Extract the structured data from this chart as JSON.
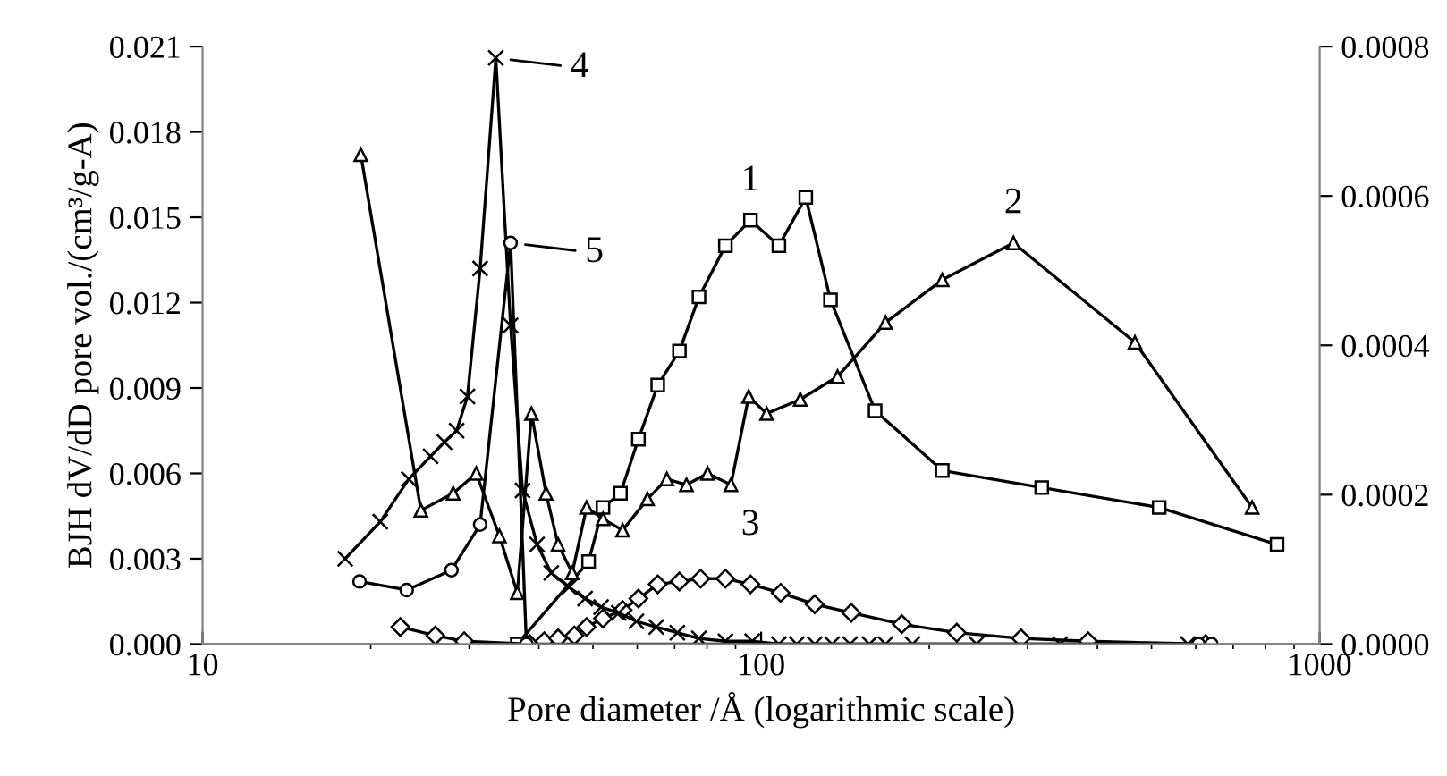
{
  "chart_data": {
    "type": "line",
    "xlabel": "Pore diameter /Å (logarithmic scale)",
    "ylabel": "BJH dV/dD pore vol./(cm³/g-A)",
    "log": "x",
    "xlim": [
      10,
      1000
    ],
    "xticks": [
      10,
      100,
      1000
    ],
    "ylim": [
      0,
      0.021
    ],
    "yticks": [
      {
        "value": 0,
        "label": "0.000"
      },
      {
        "value": 0.003,
        "label": "0.003"
      },
      {
        "value": 0.006,
        "label": "0.006"
      },
      {
        "value": 0.009,
        "label": "0.009"
      },
      {
        "value": 0.012,
        "label": "0.012"
      },
      {
        "value": 0.015,
        "label": "0.015"
      },
      {
        "value": 0.018,
        "label": "0.018"
      },
      {
        "value": 0.021,
        "label": "0.021"
      }
    ],
    "y2lim": [
      0,
      0.0008
    ],
    "y2ticks": [
      {
        "value": 0,
        "label": "0.0000"
      },
      {
        "value": 0.0002,
        "label": "0.0002"
      },
      {
        "value": 0.0004,
        "label": "0.0004"
      },
      {
        "value": 0.0006,
        "label": "0.0006"
      },
      {
        "value": 0.0008,
        "label": "0.0008"
      }
    ],
    "grid": false,
    "line_style": "solid",
    "annotations": [
      {
        "text": "1",
        "x": 95.7,
        "y": 0.0149
      },
      {
        "text": "2",
        "x": 283,
        "y": 0.0141
      },
      {
        "text": "3",
        "x": 95.7,
        "y": 0.0021
      },
      {
        "text": "4",
        "x": 33.5,
        "y": 0.0206
      },
      {
        "text": "5",
        "x": 35.6,
        "y": 0.0141
      }
    ],
    "series": [
      {
        "color": "#000000",
        "marker": "square",
        "x": [
          36.6,
          49.1,
          52.1,
          56.0,
          60.3,
          65.3,
          71.4,
          77.4,
          86.3,
          95.7,
          107.6,
          120.2,
          133.1,
          160,
          211,
          318,
          516,
          839
        ],
        "values": [
          0.0,
          0.0029,
          0.0048,
          0.0053,
          0.0072,
          0.0091,
          0.0103,
          0.0122,
          0.014,
          0.0149,
          0.014,
          0.0157,
          0.0121,
          0.0082,
          0.0061,
          0.0055,
          0.0048,
          0.0035
        ]
      },
      {
        "color": "#000000",
        "marker": "triangle",
        "x": [
          19.2,
          24.6,
          28.1,
          30.9,
          34.0,
          36.6,
          38.8,
          41.2,
          43.3,
          45.9,
          48.7,
          52.1,
          56.5,
          62.6,
          67.8,
          73.5,
          80.2,
          88.3,
          95.0,
          102.3,
          117.5,
          137,
          167,
          211,
          283,
          467,
          757
        ],
        "values": [
          0.0172,
          0.0047,
          0.0053,
          0.006,
          0.0038,
          0.0018,
          0.0081,
          0.0053,
          0.0035,
          0.0025,
          0.0048,
          0.0044,
          0.004,
          0.0051,
          0.0058,
          0.0056,
          0.006,
          0.0056,
          0.0087,
          0.0081,
          0.0086,
          0.0094,
          0.0113,
          0.0128,
          0.0141,
          0.0106,
          0.0048
        ]
      },
      {
        "color": "#000000",
        "marker": "diamond",
        "x": [
          22.6,
          26.1,
          29.4,
          38.5,
          40.9,
          43.3,
          46.3,
          48.7,
          52.1,
          56.5,
          60.3,
          65.3,
          71.4,
          77.9,
          86.3,
          95.7,
          108.4,
          124.7,
          145,
          178.6,
          224,
          292,
          385,
          625
        ],
        "values": [
          0.0006,
          0.0003,
          0.0001,
          0.0,
          0.0001,
          0.0002,
          0.0003,
          0.0006,
          0.0009,
          0.0012,
          0.0016,
          0.0021,
          0.0022,
          0.0023,
          0.0023,
          0.0021,
          0.0018,
          0.0014,
          0.0011,
          0.0007,
          0.0004,
          0.0002,
          0.0001,
          0.0
        ]
      },
      {
        "color": "#000000",
        "marker": "cross",
        "x": [
          18.0,
          20.8,
          23.4,
          25.6,
          27.1,
          28.5,
          29.8,
          31.4,
          33.5,
          35.6,
          37.4,
          39.7,
          42.1,
          45.3,
          48.4,
          51.7,
          55.6,
          59.8,
          64.9,
          70.8,
          77.4,
          86.3,
          96.4,
          107.6,
          115.8,
          124.7,
          134,
          144.3,
          156.3,
          167,
          186.6,
          243,
          343,
          581
        ],
        "values": [
          0.003,
          0.0043,
          0.0058,
          0.0066,
          0.0071,
          0.0075,
          0.0087,
          0.0132,
          0.0206,
          0.0112,
          0.0054,
          0.0035,
          0.0025,
          0.002,
          0.0016,
          0.0013,
          0.0011,
          0.0008,
          0.0006,
          0.0004,
          0.0002,
          0.0001,
          0.0001,
          0.0,
          0.0,
          0.0,
          0.0,
          0.0,
          0.0,
          0.0,
          0.0,
          0.0,
          0.0,
          0.0
        ]
      },
      {
        "color": "#000000",
        "marker": "circle",
        "x": [
          19.1,
          23.2,
          27.9,
          31.4,
          35.6,
          38.0,
          607,
          640
        ],
        "values": [
          0.0022,
          0.0019,
          0.0026,
          0.0042,
          0.0141,
          0.0,
          0.0,
          0.0
        ]
      }
    ]
  }
}
